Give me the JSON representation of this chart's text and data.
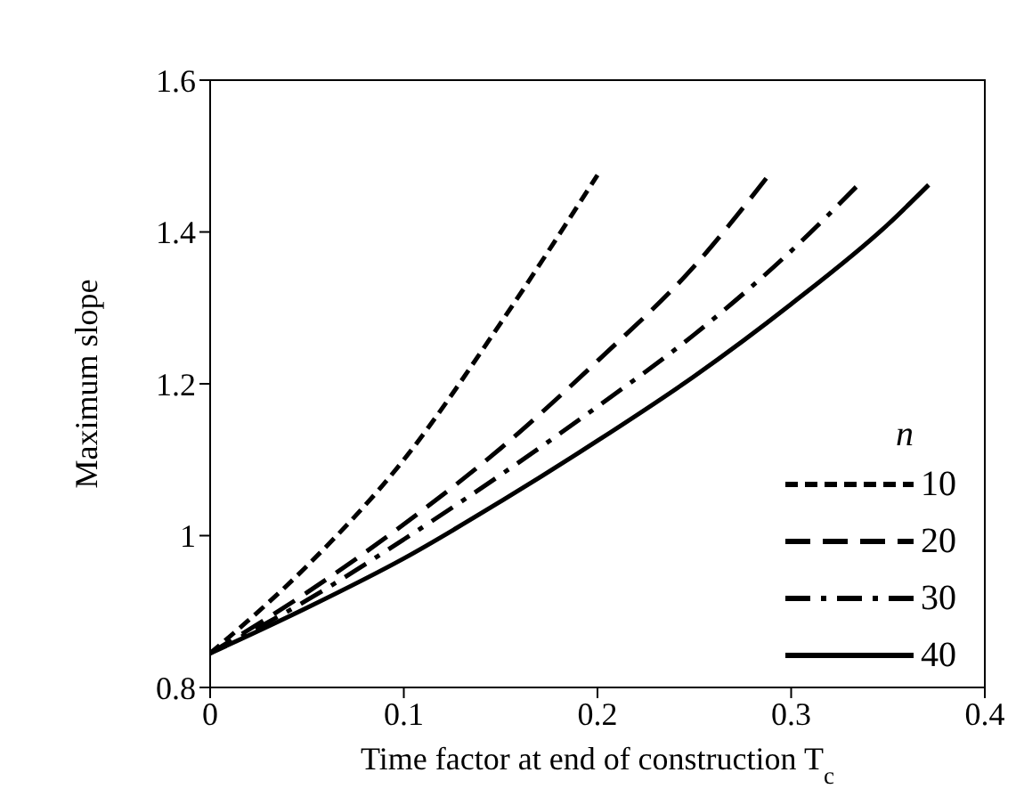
{
  "chart_data": {
    "type": "line",
    "xlabel": "Time factor at end of construction T$_{c}$",
    "ylabel": "Maximum slope",
    "legend_title": "n",
    "legend": "bottom right",
    "xlim": [
      0,
      0.4
    ],
    "xticks": [
      0,
      0.1,
      0.2,
      0.3,
      0.4
    ],
    "ylim": [
      0.8,
      1.6
    ],
    "yticks": [
      0.8,
      1,
      1.2,
      1.4,
      1.6
    ],
    "grid": false,
    "marker": "none",
    "series": [
      {
        "name": "10",
        "color": "#000000",
        "line_style": "dotted",
        "x": [
          0,
          0.05,
          0.1,
          0.15,
          0.2
        ],
        "values": [
          0.845,
          0.96,
          1.1,
          1.28,
          1.475
        ]
      },
      {
        "name": "20",
        "color": "#000000",
        "line_style": "dashed",
        "x": [
          0,
          0.05,
          0.1,
          0.15,
          0.2,
          0.25,
          0.29
        ],
        "values": [
          0.845,
          0.925,
          1.015,
          1.115,
          1.23,
          1.355,
          1.48
        ]
      },
      {
        "name": "30",
        "color": "#000000",
        "line_style": "dashdot",
        "x": [
          0,
          0.05,
          0.1,
          0.15,
          0.2,
          0.25,
          0.3,
          0.335
        ],
        "values": [
          0.845,
          0.915,
          0.995,
          1.08,
          1.17,
          1.265,
          1.375,
          1.463
        ]
      },
      {
        "name": "40",
        "color": "#000000",
        "line_style": "solid",
        "x": [
          0,
          0.05,
          0.1,
          0.15,
          0.2,
          0.25,
          0.3,
          0.35,
          0.371
        ],
        "values": [
          0.845,
          0.905,
          0.97,
          1.045,
          1.125,
          1.21,
          1.305,
          1.41,
          1.462
        ]
      }
    ]
  }
}
